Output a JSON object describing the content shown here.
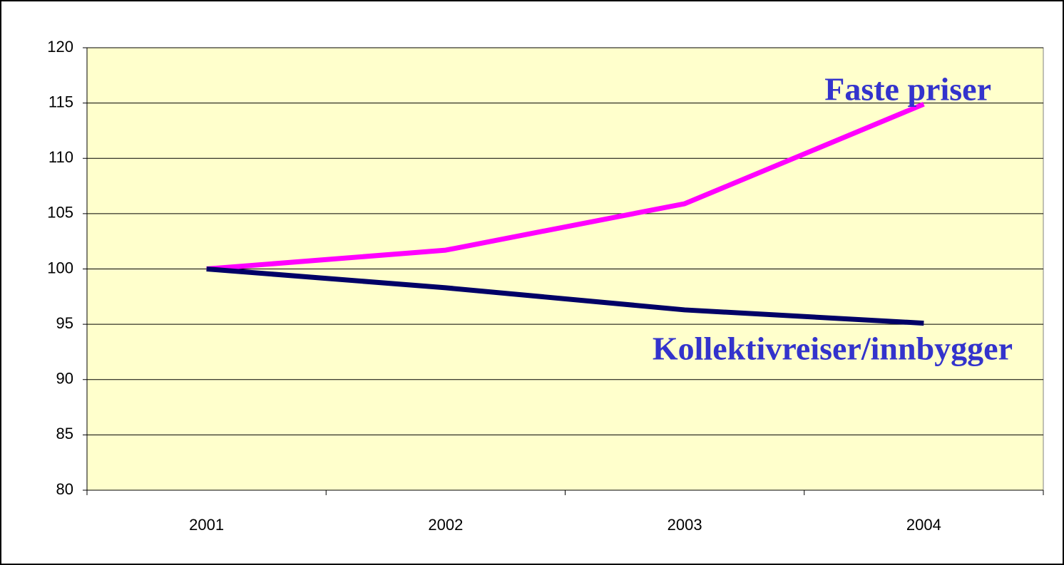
{
  "chart_data": {
    "type": "line",
    "categories": [
      "2001",
      "2002",
      "2003",
      "2004"
    ],
    "series": [
      {
        "name": "Faste priser",
        "color": "#ff00ff",
        "values": [
          100,
          101.7,
          105.9,
          114.9
        ]
      },
      {
        "name": "Kollektivreiser/innbygger",
        "color": "#000066",
        "values": [
          100,
          98.3,
          96.3,
          95.1
        ]
      }
    ],
    "ylim": [
      80,
      120
    ],
    "yticks": [
      80,
      85,
      90,
      95,
      100,
      105,
      110,
      115,
      120
    ],
    "grid": true,
    "plot_background": "#ffffcc",
    "label_color": "#3333cc"
  }
}
